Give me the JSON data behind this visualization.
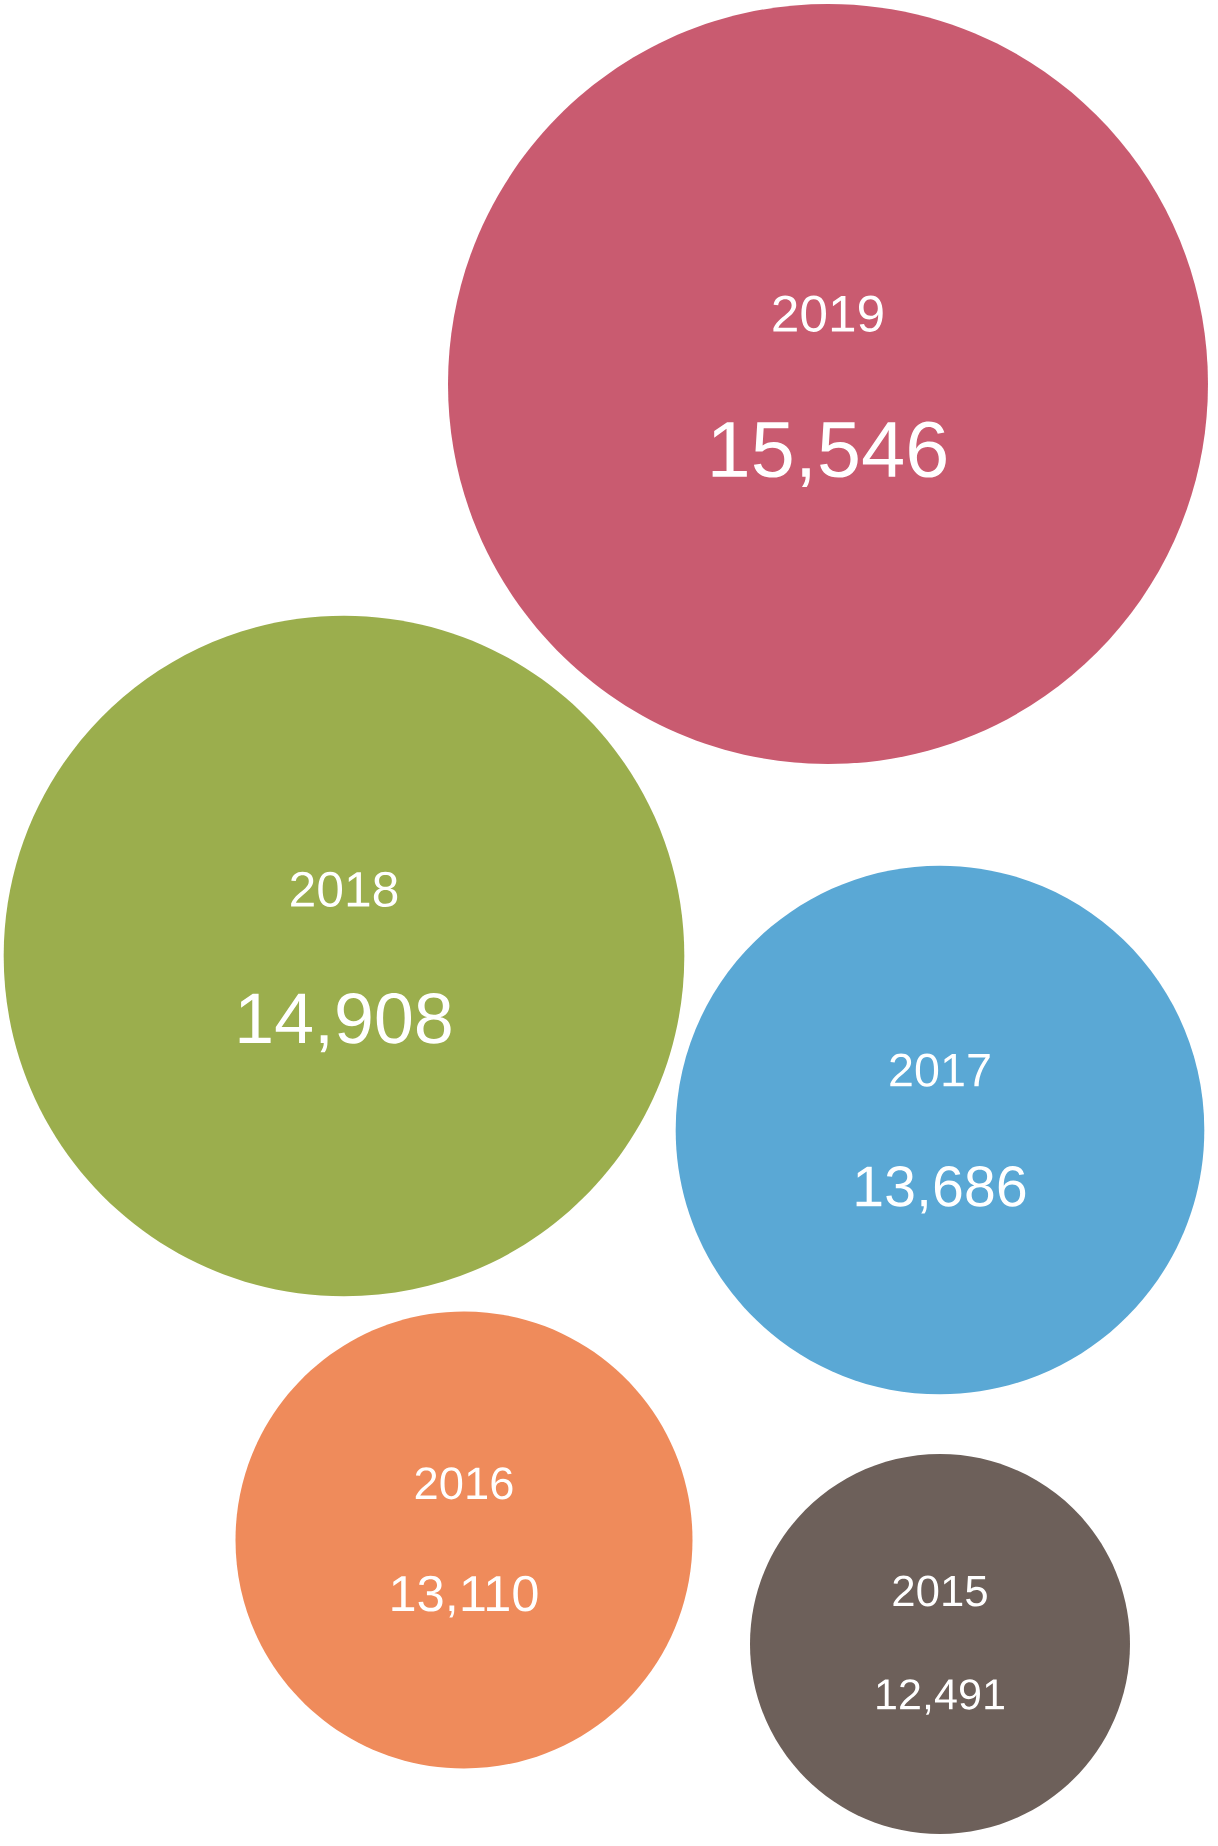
{
  "chart_data": {
    "type": "other",
    "categories": [
      "2019",
      "2018",
      "2017",
      "2016",
      "2015"
    ],
    "values": [
      15546,
      14908,
      13686,
      13110,
      12491
    ],
    "value_labels": [
      "15,546",
      "14,908",
      "13,686",
      "13,110",
      "12,491"
    ],
    "data_labels": true,
    "colors": [
      "#c95b70",
      "#9bae4d",
      "#5aa8d5",
      "#ef8b5b",
      "#6d605a"
    ]
  }
}
